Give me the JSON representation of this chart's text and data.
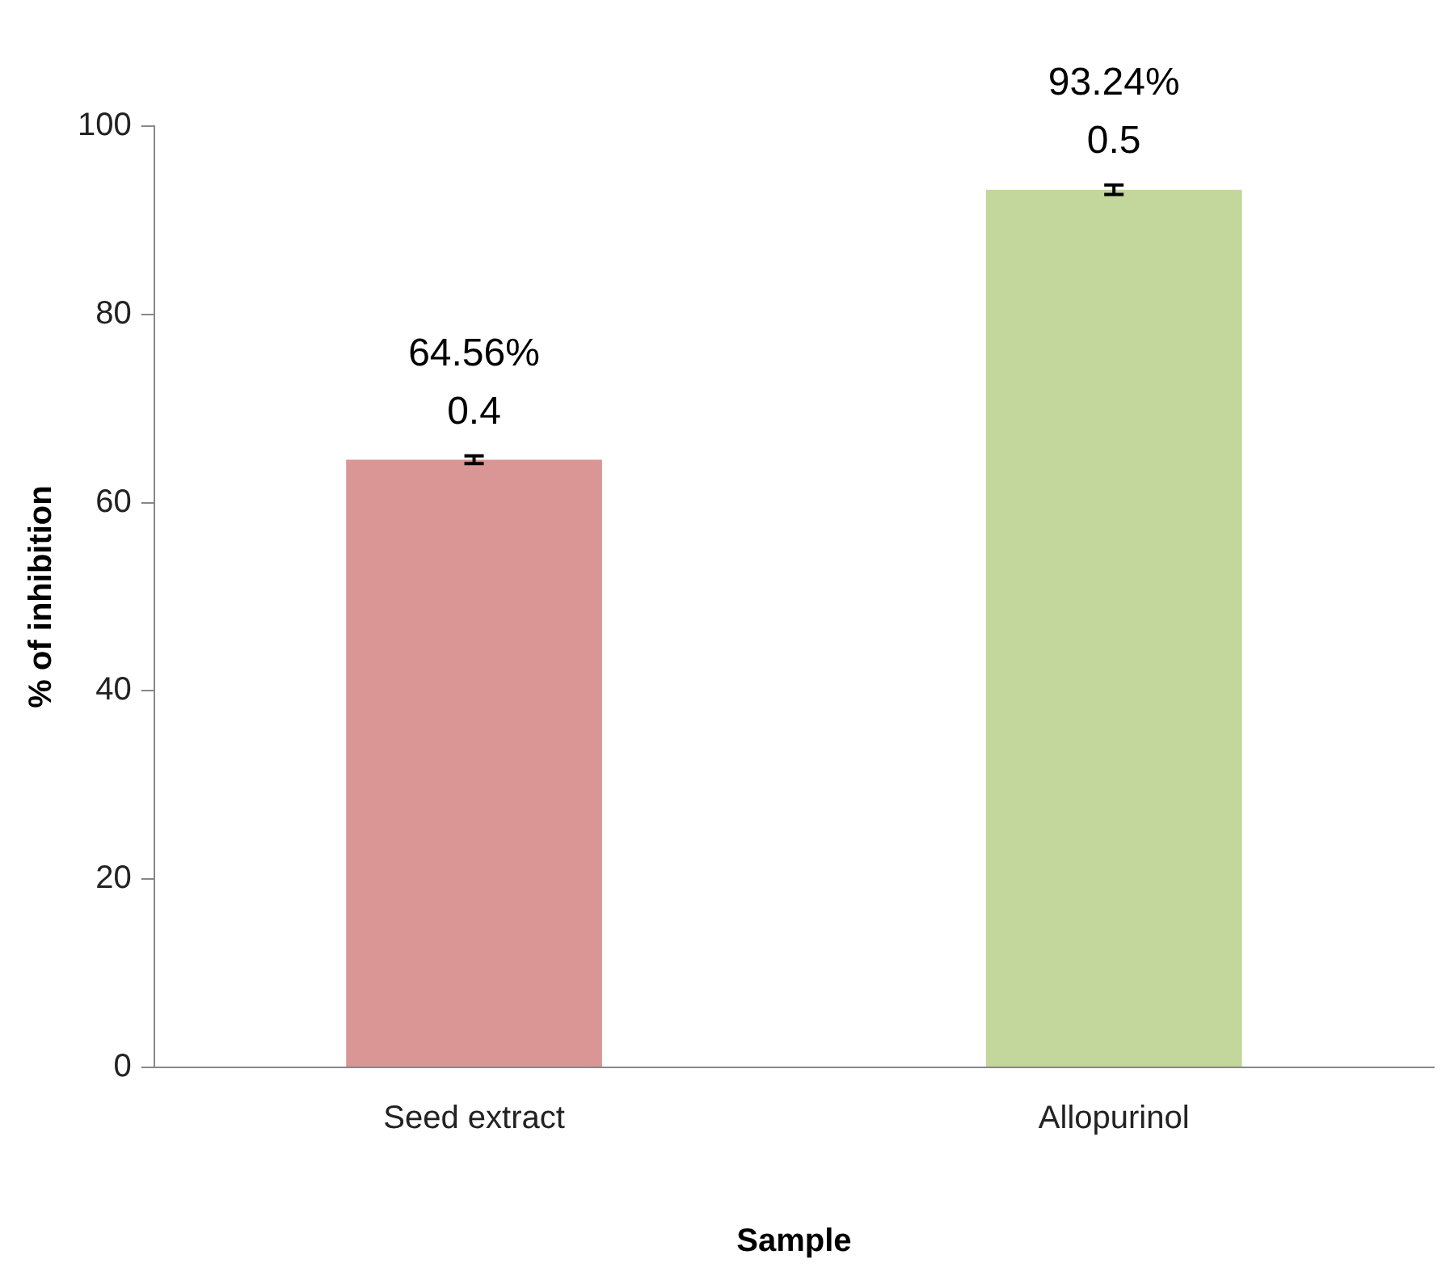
{
  "chart_data": {
    "type": "bar",
    "xlabel": "Sample",
    "ylabel": "% of inhibition",
    "categories": [
      "Seed extract",
      "Allopurinol"
    ],
    "values": [
      64.56,
      93.24
    ],
    "colors": [
      "#d99694",
      "#c3d69b"
    ],
    "errors": [
      0.4,
      0.5
    ],
    "value_labels": [
      "64.56%\n0.4",
      "93.24%\n0.5"
    ],
    "ylim": [
      0,
      100
    ],
    "yticks": [
      0,
      20,
      40,
      60,
      80,
      100
    ],
    "grid": false,
    "legend": false
  }
}
